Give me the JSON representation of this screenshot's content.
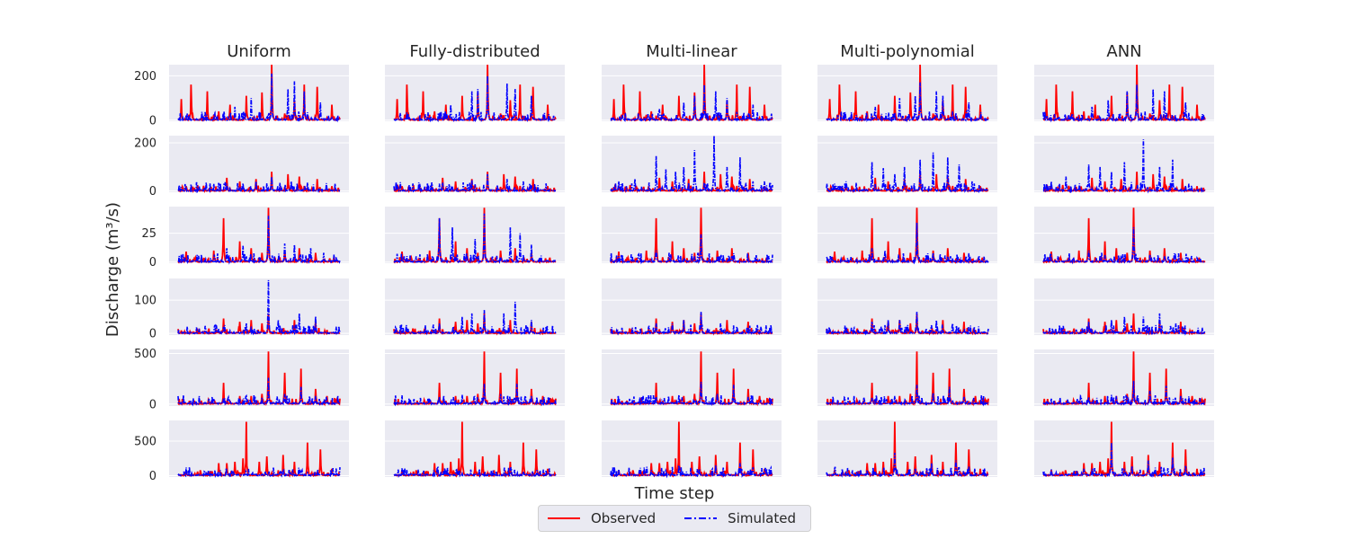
{
  "chart_data": {
    "type": "line",
    "ylabel": "Discharge (m³/s)",
    "xlabel": "Time step",
    "columns": [
      "Uniform",
      "Fully-distributed",
      "Multi-linear",
      "Multi-polynomial",
      "ANN"
    ],
    "rows": [
      {
        "ylim": [
          -5,
          250
        ],
        "yticks": [
          0,
          200
        ],
        "observed_peaks": [
          [
            0.02,
            95
          ],
          [
            0.08,
            160
          ],
          [
            0.18,
            130
          ],
          [
            0.25,
            40
          ],
          [
            0.32,
            70
          ],
          [
            0.42,
            110
          ],
          [
            0.52,
            125
          ],
          [
            0.58,
            250
          ],
          [
            0.66,
            30
          ],
          [
            0.72,
            90
          ],
          [
            0.78,
            160
          ],
          [
            0.86,
            150
          ],
          [
            0.95,
            70
          ]
        ],
        "simulated_peaks": {
          "Uniform": [
            [
              0.35,
              60
            ],
            [
              0.45,
              100
            ],
            [
              0.58,
              210
            ],
            [
              0.68,
              140
            ],
            [
              0.72,
              175
            ],
            [
              0.78,
              130
            ],
            [
              0.88,
              80
            ]
          ],
          "Fully-distributed": [
            [
              0.35,
              70
            ],
            [
              0.48,
              130
            ],
            [
              0.52,
              140
            ],
            [
              0.58,
              200
            ],
            [
              0.7,
              165
            ],
            [
              0.75,
              140
            ],
            [
              0.85,
              110
            ]
          ],
          "Multi-linear": [
            [
              0.3,
              50
            ],
            [
              0.45,
              80
            ],
            [
              0.52,
              110
            ],
            [
              0.58,
              160
            ],
            [
              0.65,
              130
            ],
            [
              0.72,
              100
            ],
            [
              0.88,
              70
            ]
          ],
          "Multi-polynomial": [
            [
              0.3,
              60
            ],
            [
              0.45,
              100
            ],
            [
              0.55,
              110
            ],
            [
              0.58,
              170
            ],
            [
              0.68,
              130
            ],
            [
              0.72,
              110
            ],
            [
              0.88,
              80
            ]
          ],
          "ANN": [
            [
              0.3,
              60
            ],
            [
              0.4,
              90
            ],
            [
              0.52,
              130
            ],
            [
              0.58,
              160
            ],
            [
              0.68,
              140
            ],
            [
              0.75,
              130
            ],
            [
              0.88,
              80
            ]
          ]
        }
      },
      {
        "ylim": [
          -5,
          230
        ],
        "yticks": [
          0,
          200
        ],
        "observed_peaks": [
          [
            0.05,
            20
          ],
          [
            0.12,
            25
          ],
          [
            0.3,
            55
          ],
          [
            0.38,
            40
          ],
          [
            0.48,
            50
          ],
          [
            0.58,
            80
          ],
          [
            0.68,
            70
          ],
          [
            0.75,
            60
          ],
          [
            0.86,
            50
          ],
          [
            0.95,
            20
          ]
        ],
        "simulated_peaks": {
          "Uniform": [
            [
              0.3,
              30
            ],
            [
              0.48,
              40
            ],
            [
              0.58,
              60
            ],
            [
              0.7,
              40
            ],
            [
              0.8,
              35
            ]
          ],
          "Fully-distributed": [
            [
              0.3,
              35
            ],
            [
              0.48,
              45
            ],
            [
              0.58,
              70
            ],
            [
              0.7,
              50
            ],
            [
              0.8,
              40
            ]
          ],
          "Multi-linear": [
            [
              0.05,
              40
            ],
            [
              0.15,
              50
            ],
            [
              0.28,
              145
            ],
            [
              0.34,
              90
            ],
            [
              0.4,
              80
            ],
            [
              0.45,
              100
            ],
            [
              0.52,
              170
            ],
            [
              0.64,
              230
            ],
            [
              0.72,
              100
            ],
            [
              0.8,
              140
            ],
            [
              0.88,
              40
            ],
            [
              0.95,
              40
            ]
          ],
          "Multi-polynomial": [
            [
              0.05,
              30
            ],
            [
              0.12,
              40
            ],
            [
              0.28,
              120
            ],
            [
              0.35,
              95
            ],
            [
              0.42,
              70
            ],
            [
              0.48,
              100
            ],
            [
              0.58,
              130
            ],
            [
              0.66,
              160
            ],
            [
              0.75,
              140
            ],
            [
              0.82,
              110
            ],
            [
              0.9,
              40
            ]
          ],
          "ANN": [
            [
              0.05,
              40
            ],
            [
              0.14,
              60
            ],
            [
              0.28,
              110
            ],
            [
              0.35,
              100
            ],
            [
              0.42,
              80
            ],
            [
              0.5,
              120
            ],
            [
              0.62,
              215
            ],
            [
              0.72,
              100
            ],
            [
              0.8,
              130
            ],
            [
              0.9,
              30
            ]
          ]
        }
      },
      {
        "ylim": [
          -1,
          48
        ],
        "yticks": [
          0,
          25
        ],
        "observed_peaks": [
          [
            0.05,
            9
          ],
          [
            0.22,
            10
          ],
          [
            0.28,
            38
          ],
          [
            0.38,
            18
          ],
          [
            0.45,
            12
          ],
          [
            0.52,
            8
          ],
          [
            0.56,
            47
          ],
          [
            0.66,
            10
          ],
          [
            0.75,
            12
          ],
          [
            0.85,
            8
          ]
        ],
        "simulated_peaks": {
          "Uniform": [
            [
              0.3,
              12
            ],
            [
              0.4,
              14
            ],
            [
              0.56,
              40
            ],
            [
              0.66,
              16
            ],
            [
              0.72,
              15
            ],
            [
              0.82,
              12
            ],
            [
              0.9,
              8
            ]
          ],
          "Fully-distributed": [
            [
              0.28,
              38
            ],
            [
              0.36,
              30
            ],
            [
              0.5,
              20
            ],
            [
              0.56,
              42
            ],
            [
              0.72,
              30
            ],
            [
              0.78,
              25
            ],
            [
              0.85,
              15
            ]
          ],
          "Multi-linear": [
            [
              0.28,
              10
            ],
            [
              0.36,
              8
            ],
            [
              0.56,
              24
            ],
            [
              0.66,
              5
            ],
            [
              0.75,
              5
            ]
          ],
          "Multi-polynomial": [
            [
              0.28,
              12
            ],
            [
              0.36,
              10
            ],
            [
              0.56,
              34
            ],
            [
              0.66,
              8
            ],
            [
              0.75,
              5
            ]
          ],
          "ANN": [
            [
              0.28,
              10
            ],
            [
              0.36,
              8
            ],
            [
              0.56,
              30
            ],
            [
              0.66,
              6
            ],
            [
              0.75,
              5
            ]
          ]
        }
      },
      {
        "ylim": [
          -5,
          165
        ],
        "yticks": [
          0,
          100
        ],
        "observed_peaks": [
          [
            0.28,
            45
          ],
          [
            0.38,
            35
          ],
          [
            0.45,
            40
          ],
          [
            0.52,
            30
          ],
          [
            0.56,
            60
          ],
          [
            0.72,
            40
          ],
          [
            0.85,
            35
          ]
        ],
        "simulated_peaks": {
          "Uniform": [
            [
              0.28,
              20
            ],
            [
              0.42,
              30
            ],
            [
              0.56,
              160
            ],
            [
              0.62,
              40
            ],
            [
              0.75,
              60
            ],
            [
              0.85,
              50
            ]
          ],
          "Fully-distributed": [
            [
              0.28,
              30
            ],
            [
              0.42,
              50
            ],
            [
              0.48,
              60
            ],
            [
              0.56,
              70
            ],
            [
              0.68,
              60
            ],
            [
              0.75,
              95
            ],
            [
              0.85,
              40
            ]
          ],
          "Multi-linear": [
            [
              0.28,
              30
            ],
            [
              0.38,
              30
            ],
            [
              0.45,
              40
            ],
            [
              0.56,
              65
            ],
            [
              0.68,
              30
            ],
            [
              0.78,
              20
            ]
          ],
          "Multi-polynomial": [
            [
              0.28,
              35
            ],
            [
              0.38,
              40
            ],
            [
              0.45,
              40
            ],
            [
              0.56,
              65
            ],
            [
              0.68,
              40
            ],
            [
              0.78,
              30
            ]
          ],
          "ANN": [
            [
              0.28,
              35
            ],
            [
              0.42,
              40
            ],
            [
              0.5,
              50
            ],
            [
              0.62,
              50
            ],
            [
              0.72,
              60
            ],
            [
              0.82,
              30
            ]
          ]
        }
      },
      {
        "ylim": [
          -20,
          540
        ],
        "yticks": [
          0,
          500
        ],
        "observed_peaks": [
          [
            0.28,
            210
          ],
          [
            0.38,
            80
          ],
          [
            0.45,
            80
          ],
          [
            0.52,
            100
          ],
          [
            0.56,
            520
          ],
          [
            0.66,
            310
          ],
          [
            0.76,
            350
          ],
          [
            0.85,
            150
          ],
          [
            0.92,
            80
          ]
        ],
        "simulated_peaks": {
          "Uniform": [
            [
              0.28,
              60
            ],
            [
              0.42,
              80
            ],
            [
              0.56,
              260
            ],
            [
              0.66,
              100
            ],
            [
              0.76,
              170
            ],
            [
              0.85,
              80
            ]
          ],
          "Fully-distributed": [
            [
              0.28,
              70
            ],
            [
              0.42,
              90
            ],
            [
              0.56,
              200
            ],
            [
              0.66,
              100
            ],
            [
              0.76,
              200
            ],
            [
              0.85,
              80
            ]
          ],
          "Multi-linear": [
            [
              0.28,
              70
            ],
            [
              0.42,
              90
            ],
            [
              0.56,
              220
            ],
            [
              0.66,
              100
            ],
            [
              0.76,
              190
            ],
            [
              0.85,
              70
            ]
          ],
          "Multi-polynomial": [
            [
              0.28,
              60
            ],
            [
              0.42,
              80
            ],
            [
              0.56,
              190
            ],
            [
              0.66,
              110
            ],
            [
              0.76,
              170
            ],
            [
              0.85,
              70
            ]
          ],
          "ANN": [
            [
              0.28,
              70
            ],
            [
              0.42,
              90
            ],
            [
              0.56,
              230
            ],
            [
              0.66,
              130
            ],
            [
              0.76,
              180
            ],
            [
              0.85,
              80
            ]
          ]
        }
      },
      {
        "ylim": [
          -20,
          800
        ],
        "yticks": [
          0,
          500
        ],
        "observed_peaks": [
          [
            0.05,
            80
          ],
          [
            0.12,
            60
          ],
          [
            0.25,
            180
          ],
          [
            0.3,
            180
          ],
          [
            0.35,
            200
          ],
          [
            0.4,
            250
          ],
          [
            0.42,
            780
          ],
          [
            0.5,
            200
          ],
          [
            0.55,
            280
          ],
          [
            0.65,
            300
          ],
          [
            0.72,
            200
          ],
          [
            0.8,
            480
          ],
          [
            0.88,
            380
          ],
          [
            0.95,
            100
          ]
        ],
        "simulated_peaks": {
          "Uniform": [
            [
              0.3,
              20
            ],
            [
              0.42,
              40
            ],
            [
              0.55,
              30
            ],
            [
              0.8,
              40
            ]
          ],
          "Fully-distributed": [
            [
              0.3,
              20
            ],
            [
              0.42,
              30
            ],
            [
              0.55,
              30
            ],
            [
              0.8,
              40
            ]
          ],
          "Multi-linear": [
            [
              0.05,
              90
            ],
            [
              0.25,
              80
            ],
            [
              0.42,
              150
            ],
            [
              0.55,
              100
            ],
            [
              0.65,
              150
            ],
            [
              0.8,
              180
            ],
            [
              0.88,
              120
            ]
          ],
          "Multi-polynomial": [
            [
              0.05,
              100
            ],
            [
              0.25,
              80
            ],
            [
              0.42,
              330
            ],
            [
              0.55,
              100
            ],
            [
              0.65,
              180
            ],
            [
              0.8,
              220
            ],
            [
              0.88,
              130
            ]
          ],
          "ANN": [
            [
              0.05,
              90
            ],
            [
              0.25,
              100
            ],
            [
              0.42,
              480
            ],
            [
              0.55,
              140
            ],
            [
              0.65,
              220
            ],
            [
              0.8,
              260
            ],
            [
              0.88,
              140
            ]
          ]
        }
      }
    ],
    "legend": [
      {
        "name": "Observed",
        "color": "#ff0000",
        "style": "solid"
      },
      {
        "name": "Simulated",
        "color": "#0000ff",
        "style": "dash-dot"
      }
    ],
    "legend_position": "bottom-center",
    "grid": true,
    "background": "#eaeaf2"
  }
}
